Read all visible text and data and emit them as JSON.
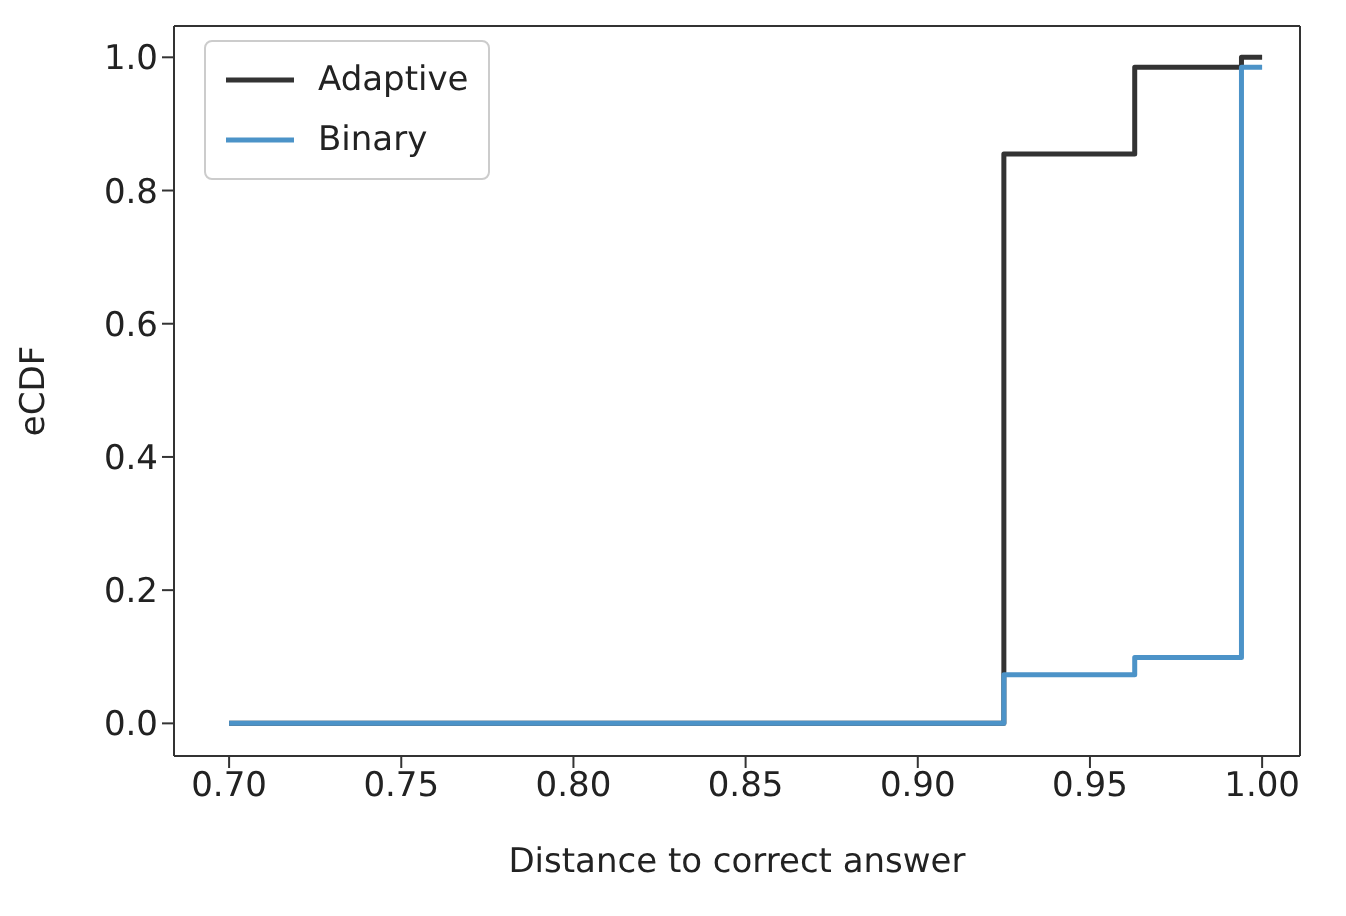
{
  "chart_data": {
    "type": "step",
    "xlabel": "Distance to correct answer",
    "ylabel": "eCDF",
    "xlim": [
      0.684,
      1.011
    ],
    "xticks": [
      {
        "value": 0.7,
        "label": "0.70"
      },
      {
        "value": 0.75,
        "label": "0.75"
      },
      {
        "value": 0.8,
        "label": "0.80"
      },
      {
        "value": 0.85,
        "label": "0.85"
      },
      {
        "value": 0.9,
        "label": "0.90"
      },
      {
        "value": 0.95,
        "label": "0.95"
      },
      {
        "value": 1,
        "label": "1.00"
      }
    ],
    "ylim": [
      -0.049,
      1.047
    ],
    "yticks": [
      {
        "value": 0,
        "label": "0.0"
      },
      {
        "value": 0.2,
        "label": "0.2"
      },
      {
        "value": 0.4,
        "label": "0.4"
      },
      {
        "value": 0.6,
        "label": "0.6"
      },
      {
        "value": 0.8,
        "label": "0.8"
      },
      {
        "value": 1,
        "label": "1.0"
      }
    ],
    "grid": false,
    "legend": "top left",
    "marker": "none",
    "line_style": "solid",
    "series": [
      {
        "name": "Adaptive",
        "color": "#333333",
        "x": [
          0.7,
          0.925,
          0.963,
          0.994,
          1.0
        ],
        "values": [
          0,
          0.855,
          0.985,
          1.0,
          1.0
        ]
      },
      {
        "name": "Binary",
        "color": "#4c93c8",
        "x": [
          0.7,
          0.925,
          0.963,
          0.994,
          1.0
        ],
        "values": [
          0,
          0.073,
          0.099,
          0.985,
          0.985
        ]
      }
    ]
  }
}
